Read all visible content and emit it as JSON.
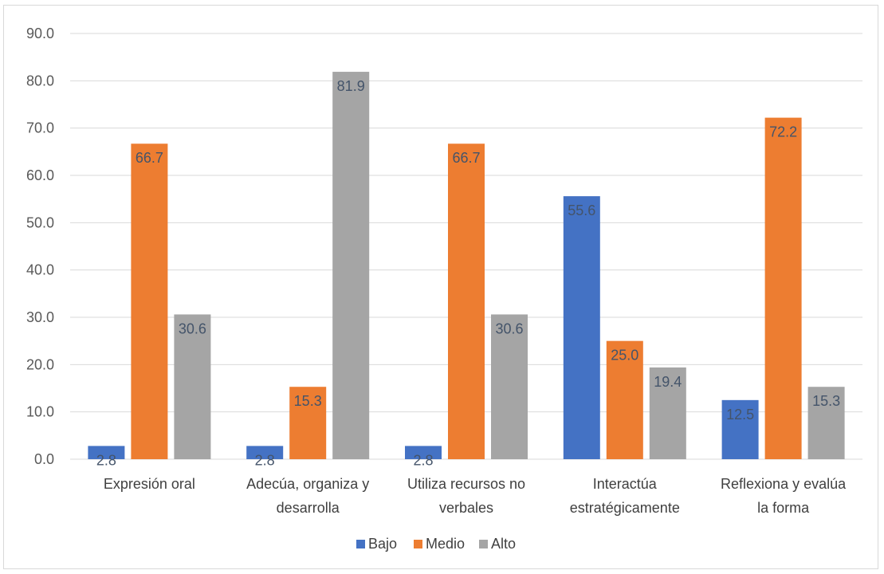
{
  "chart_data": {
    "type": "bar",
    "categories": [
      [
        "Expresión oral"
      ],
      [
        "Adecúa, organiza y",
        "desarrolla"
      ],
      [
        "Utiliza recursos no",
        "verbales"
      ],
      [
        "Interactúa",
        "estratégicamente"
      ],
      [
        "Reflexiona y evalúa",
        "la forma"
      ]
    ],
    "series": [
      {
        "name": "Bajo",
        "color": "#4472c4",
        "values": [
          2.8,
          2.8,
          2.8,
          55.6,
          12.5
        ]
      },
      {
        "name": "Medio",
        "color": "#ed7d31",
        "values": [
          66.7,
          15.3,
          66.7,
          25.0,
          72.2
        ]
      },
      {
        "name": "Alto",
        "color": "#a5a5a5",
        "values": [
          30.6,
          81.9,
          30.6,
          19.4,
          15.3
        ]
      }
    ],
    "ylim": [
      0,
      90
    ],
    "yticks": [
      "0.0",
      "10.0",
      "20.0",
      "30.0",
      "40.0",
      "50.0",
      "60.0",
      "70.0",
      "80.0",
      "90.0"
    ],
    "grid": true,
    "legend_position": "bottom",
    "data_labels": true
  }
}
